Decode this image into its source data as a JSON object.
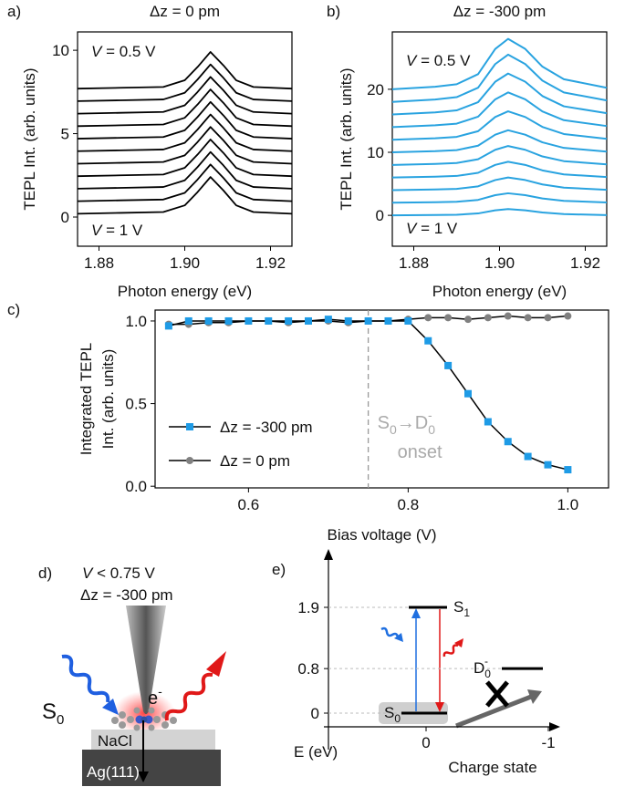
{
  "chart_data": [
    {
      "type": "line",
      "label": "a)",
      "title": "Δz = 0 pm",
      "xlabel": "Photon energy (eV)",
      "ylabel": "TEPL Int. (arb. units)",
      "color": "#000000",
      "x": [
        1.875,
        1.885,
        1.895,
        1.9,
        1.903,
        1.906,
        1.909,
        1.912,
        1.916,
        1.925
      ],
      "series": [
        {
          "values": [
            0.2,
            0.25,
            0.3,
            0.7,
            1.5,
            2.4,
            1.6,
            0.7,
            0.3,
            0.2
          ]
        },
        {
          "values": [
            0.95,
            1,
            1.05,
            1.45,
            2.25,
            3.15,
            2.35,
            1.45,
            1.05,
            0.95
          ]
        },
        {
          "values": [
            1.7,
            1.75,
            1.8,
            2.2,
            3,
            3.9,
            3.1,
            2.2,
            1.8,
            1.7
          ]
        },
        {
          "values": [
            2.45,
            2.5,
            2.55,
            2.95,
            3.75,
            4.65,
            3.85,
            2.95,
            2.55,
            2.45
          ]
        },
        {
          "values": [
            3.2,
            3.25,
            3.3,
            3.7,
            4.5,
            5.4,
            4.6,
            3.7,
            3.3,
            3.2
          ]
        },
        {
          "values": [
            3.95,
            4,
            4.05,
            4.45,
            5.25,
            6.15,
            5.35,
            4.45,
            4.05,
            3.95
          ]
        },
        {
          "values": [
            4.7,
            4.75,
            4.8,
            5.2,
            6,
            6.9,
            6.1,
            5.2,
            4.8,
            4.7
          ]
        },
        {
          "values": [
            5.45,
            5.5,
            5.55,
            5.95,
            6.75,
            7.65,
            6.85,
            5.95,
            5.55,
            5.45
          ]
        },
        {
          "values": [
            6.2,
            6.25,
            6.3,
            6.7,
            7.5,
            8.4,
            7.6,
            6.7,
            6.3,
            6.2
          ]
        },
        {
          "values": [
            6.95,
            7,
            7.05,
            7.45,
            8.25,
            9.15,
            8.35,
            7.45,
            7.05,
            6.95
          ]
        },
        {
          "values": [
            7.7,
            7.75,
            7.8,
            8.2,
            9,
            9.9,
            9.1,
            8.2,
            7.8,
            7.7
          ]
        }
      ],
      "xlim": [
        1.875,
        1.925
      ],
      "ylim": [
        -1.75,
        11.1
      ],
      "xticks": [
        {
          "value": 1.88,
          "label": "1.88"
        },
        {
          "value": 1.9,
          "label": "1.90"
        },
        {
          "value": 1.92,
          "label": "1.92"
        }
      ],
      "yticks": [
        0,
        5,
        10
      ],
      "annotations": [
        {
          "var": "V",
          "text": " = 0.5 V"
        },
        {
          "var": "V",
          "text": " = 1 V"
        }
      ]
    },
    {
      "type": "line",
      "label": "b)",
      "title": "Δz = -300 pm",
      "xlabel": "Photon energy (eV)",
      "ylabel": "TEPL Int. (arb. units)",
      "color": "#29a3e0",
      "x": [
        1.875,
        1.885,
        1.89,
        1.895,
        1.899,
        1.902,
        1.906,
        1.91,
        1.915,
        1.925
      ],
      "series": [
        {
          "values": [
            0,
            0.05,
            0.1,
            0.3,
            0.8,
            1,
            0.8,
            0.45,
            0.2,
            0.03
          ]
        },
        {
          "values": [
            2,
            2.08,
            2.15,
            2.45,
            3.2,
            3.5,
            3.2,
            2.68,
            2.3,
            2.05
          ]
        },
        {
          "values": [
            4,
            4.1,
            4.2,
            4.6,
            5.6,
            6,
            5.6,
            4.9,
            4.4,
            4.06
          ]
        },
        {
          "values": [
            6,
            6.13,
            6.25,
            6.75,
            8,
            8.5,
            8,
            7.13,
            6.5,
            6.08
          ]
        },
        {
          "values": [
            8,
            8.15,
            8.3,
            8.9,
            10.4,
            11,
            10.4,
            9.35,
            8.6,
            8.09
          ]
        },
        {
          "values": [
            10,
            10.18,
            10.35,
            11.05,
            12.8,
            13.5,
            12.8,
            11.58,
            10.7,
            10.11
          ]
        },
        {
          "values": [
            12,
            12.23,
            12.45,
            13.35,
            15.6,
            16.5,
            15.6,
            14.03,
            12.9,
            12.14
          ]
        },
        {
          "values": [
            14,
            14.28,
            14.55,
            15.65,
            18.4,
            19.5,
            18.4,
            16.48,
            15.1,
            14.17
          ]
        },
        {
          "values": [
            16,
            16.33,
            16.65,
            17.95,
            21.2,
            22.5,
            21.2,
            18.93,
            17.3,
            16.2
          ]
        },
        {
          "values": [
            18,
            18.38,
            18.75,
            20.25,
            24,
            25.5,
            24,
            21.38,
            19.5,
            18.23
          ]
        },
        {
          "values": [
            20,
            20.4,
            20.8,
            22.4,
            26.4,
            28,
            26.4,
            23.6,
            21.6,
            20.24
          ]
        }
      ],
      "xlim": [
        1.875,
        1.925
      ],
      "ylim": [
        -4.9,
        29.1
      ],
      "xticks": [
        {
          "value": 1.88,
          "label": "1.88"
        },
        {
          "value": 1.9,
          "label": "1.90"
        },
        {
          "value": 1.92,
          "label": "1.92"
        }
      ],
      "yticks": [
        0,
        10,
        20
      ],
      "annotations": [
        {
          "var": "V",
          "text": " = 0.5 V"
        },
        {
          "var": "V",
          "text": " = 1 V"
        }
      ]
    },
    {
      "type": "line",
      "label": "c)",
      "xlabel": "Bias voltage (V)",
      "ylabel": [
        "Integrated TEPL",
        "Int. (arb. units)"
      ],
      "line_color": "#000000",
      "x": [
        0.5,
        0.525,
        0.55,
        0.575,
        0.6,
        0.625,
        0.65,
        0.675,
        0.7,
        0.725,
        0.75,
        0.775,
        0.8,
        0.825,
        0.85,
        0.875,
        0.9,
        0.925,
        0.95,
        0.975,
        1.0
      ],
      "series": [
        {
          "name": "Δz = -300 pm",
          "color": "#1e9be6",
          "marker": "square",
          "values": [
            0.97,
            1.0,
            1.0,
            1.0,
            1.0,
            1.0,
            1.0,
            1.0,
            1.01,
            1.0,
            1.0,
            1.0,
            1.0,
            0.88,
            0.73,
            0.56,
            0.39,
            0.27,
            0.18,
            0.13,
            0.1
          ]
        },
        {
          "name": "Δz = 0 pm",
          "color": "#808080",
          "marker": "circle",
          "values": [
            0.98,
            0.98,
            0.99,
            0.99,
            1.0,
            1.0,
            0.99,
            1.0,
            1.0,
            0.99,
            1.0,
            1.0,
            1.01,
            1.02,
            1.02,
            1.01,
            1.02,
            1.03,
            1.02,
            1.02,
            1.03
          ]
        }
      ],
      "xlim": [
        0.483,
        1.051
      ],
      "ylim": [
        -0.01,
        1.066
      ],
      "xticks": [
        {
          "value": 0.6,
          "label": "0.6"
        },
        {
          "value": 0.8,
          "label": "0.8"
        },
        {
          "value": 1,
          "label": "1.0"
        }
      ],
      "yticks": [
        {
          "value": 0,
          "label": "0.0"
        },
        {
          "value": 0.5,
          "label": "0.5"
        },
        {
          "value": 1,
          "label": "1.0"
        }
      ],
      "vline": 0.75,
      "vline_label": {
        "parts": [
          "S",
          "0",
          "→D",
          "0",
          "-"
        ],
        "line2": "onset"
      },
      "legend": "lower left"
    }
  ],
  "diagrams": {
    "d": {
      "label": "d)",
      "condition": {
        "var": "V",
        "text": " < 0.75 V"
      },
      "dz": "Δz = -300 pm",
      "state": {
        "main": "S",
        "sub": "0"
      },
      "electron": {
        "main": "e",
        "sup": "-"
      },
      "substrate_top": "NaCl",
      "substrate_bottom": "Ag(111)"
    },
    "e": {
      "label": "e)",
      "ylabel": "E (eV)",
      "xlabel": "Charge state",
      "yticks": [
        1.9,
        0.8,
        0
      ],
      "xticks": [
        0,
        -1
      ],
      "levels": [
        {
          "name": "S",
          "sub": "1",
          "energy": 1.9,
          "charge": 0
        },
        {
          "name": "S",
          "sub": "0",
          "energy": 0,
          "charge": 0
        },
        {
          "name": "D",
          "sub": "0",
          "sup": "-",
          "energy": 0.8,
          "charge": -1
        }
      ]
    }
  }
}
